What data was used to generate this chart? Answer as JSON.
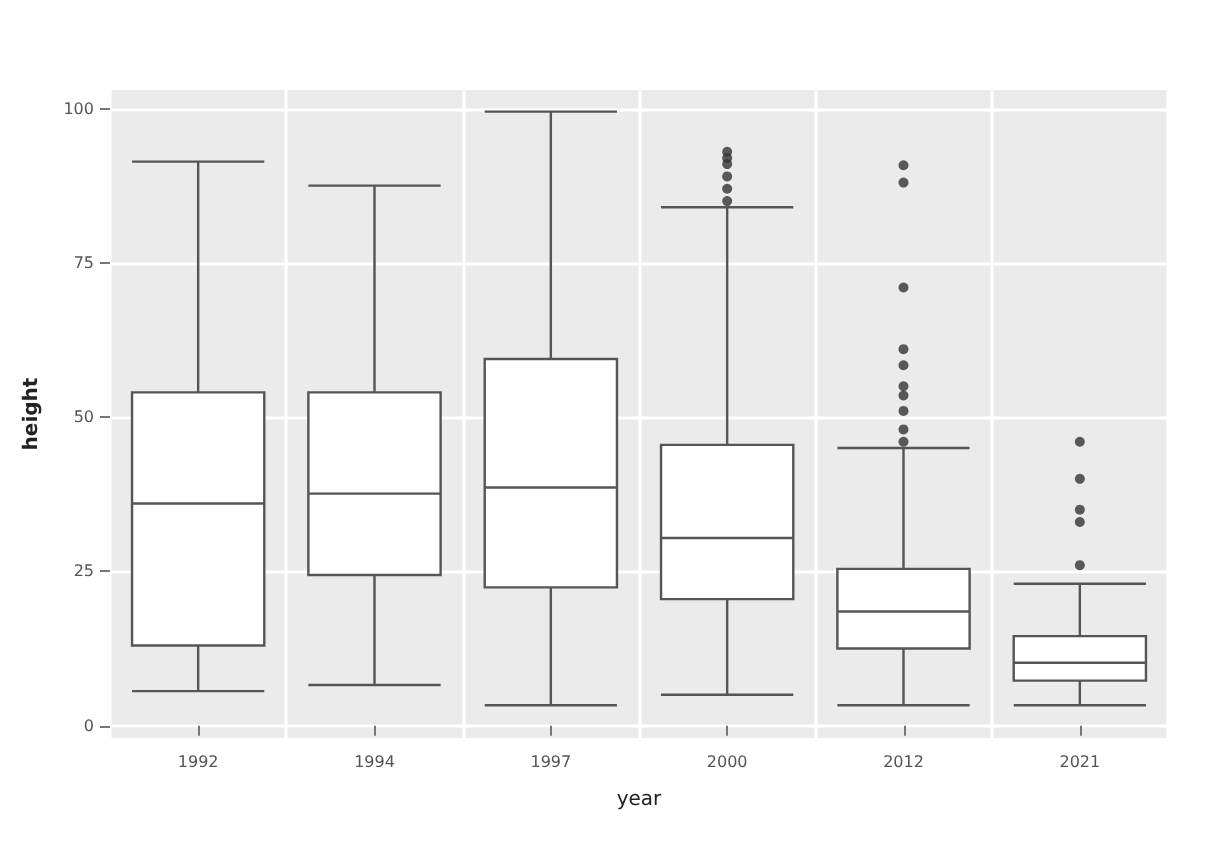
{
  "chart_data": {
    "type": "box",
    "xlabel": "year",
    "ylabel": "height",
    "categories": [
      "1992",
      "1994",
      "1997",
      "2000",
      "2012",
      "2021"
    ],
    "boxes": [
      {
        "low": 5.6,
        "q1": 13,
        "median": 36,
        "q3": 54,
        "high": 91.4
      },
      {
        "low": 6.6,
        "q1": 24.4,
        "median": 37.6,
        "q3": 54,
        "high": 87.5
      },
      {
        "low": 3.3,
        "q1": 22.4,
        "median": 38.6,
        "q3": 59.4,
        "high": 99.5
      },
      {
        "low": 5,
        "q1": 20.5,
        "median": 30.4,
        "q3": 45.5,
        "high": 84,
        "outliers": [
          85,
          87,
          89,
          91,
          92,
          93
        ]
      },
      {
        "low": 3.3,
        "q1": 12.5,
        "median": 18.5,
        "q3": 25.4,
        "high": 45,
        "outliers": [
          46,
          48,
          51,
          53.5,
          55,
          58.4,
          61,
          71,
          88,
          90.8
        ]
      },
      {
        "low": 3.3,
        "q1": 7.3,
        "median": 10.2,
        "q3": 14.5,
        "high": 23,
        "outliers": [
          26,
          33,
          35,
          40,
          46
        ]
      }
    ],
    "ylim": [
      -2,
      103
    ],
    "yticks": [
      0,
      25,
      50,
      75,
      100
    ],
    "grid": true
  }
}
